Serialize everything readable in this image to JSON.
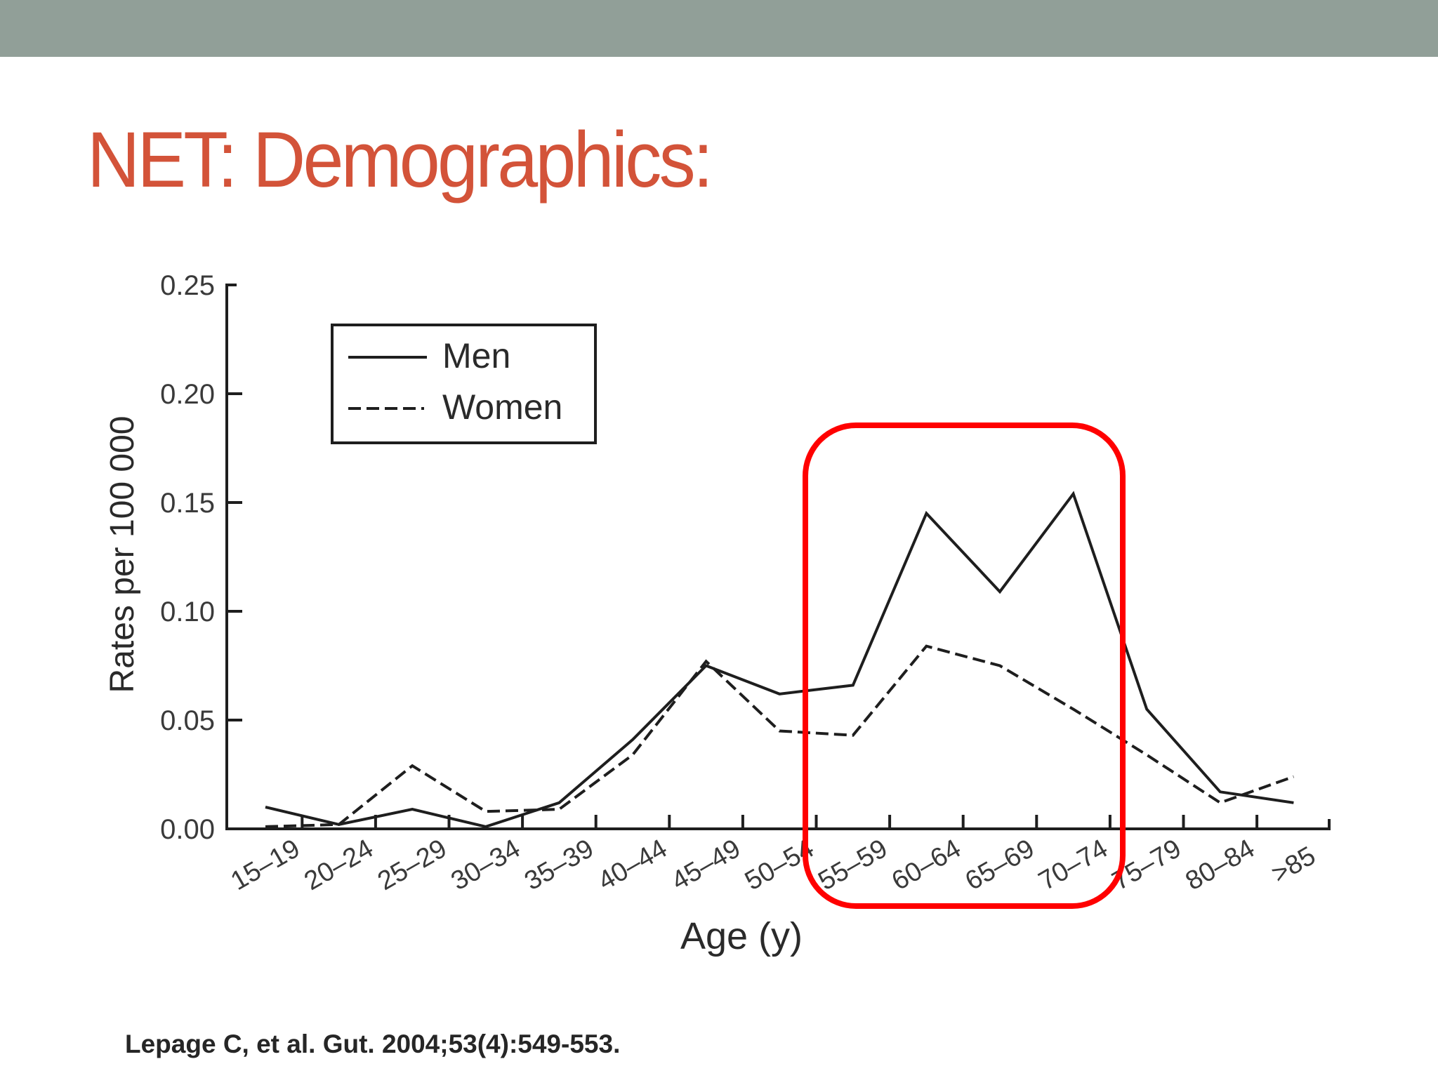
{
  "slide": {
    "title": "NET: Demographics:",
    "citation": "Lepage C, et al. Gut. 2004;53(4):549-553.",
    "colors": {
      "band": "#919f98",
      "title": "#d35339",
      "highlight": "#ff0000",
      "ink": "#1e1e1e"
    }
  },
  "highlight_box": {
    "label": "highlight-60-74",
    "covers_categories": [
      "55–59",
      "60–64",
      "65–69",
      "70–74"
    ]
  },
  "chart_data": {
    "type": "line",
    "title": "",
    "xlabel": "Age (y)",
    "ylabel": "Rates per 100 000",
    "categories": [
      "15–19",
      "20–24",
      "25–29",
      "30–34",
      "35–39",
      "40–44",
      "45–49",
      "50–54",
      "55–59",
      "60–64",
      "65–69",
      "70–74",
      "75–79",
      "80–84",
      ">85"
    ],
    "series": [
      {
        "name": "Men",
        "style": "solid",
        "values": [
          0.01,
          0.002,
          0.009,
          0.001,
          0.012,
          0.041,
          0.075,
          0.062,
          0.066,
          0.145,
          0.109,
          0.154,
          0.055,
          0.017,
          0.012
        ]
      },
      {
        "name": "Women",
        "style": "dashed",
        "values": [
          0.001,
          0.002,
          0.029,
          0.008,
          0.009,
          0.034,
          0.077,
          0.045,
          0.043,
          0.084,
          0.075,
          0.055,
          0.034,
          0.012,
          0.024
        ]
      }
    ],
    "yticks": [
      "0.00",
      "0.05",
      "0.10",
      "0.15",
      "0.20",
      "0.25"
    ],
    "ylim": [
      0,
      0.25
    ],
    "grid": false,
    "legend": {
      "position": "upper-left",
      "entries": [
        "Men",
        "Women"
      ]
    }
  }
}
